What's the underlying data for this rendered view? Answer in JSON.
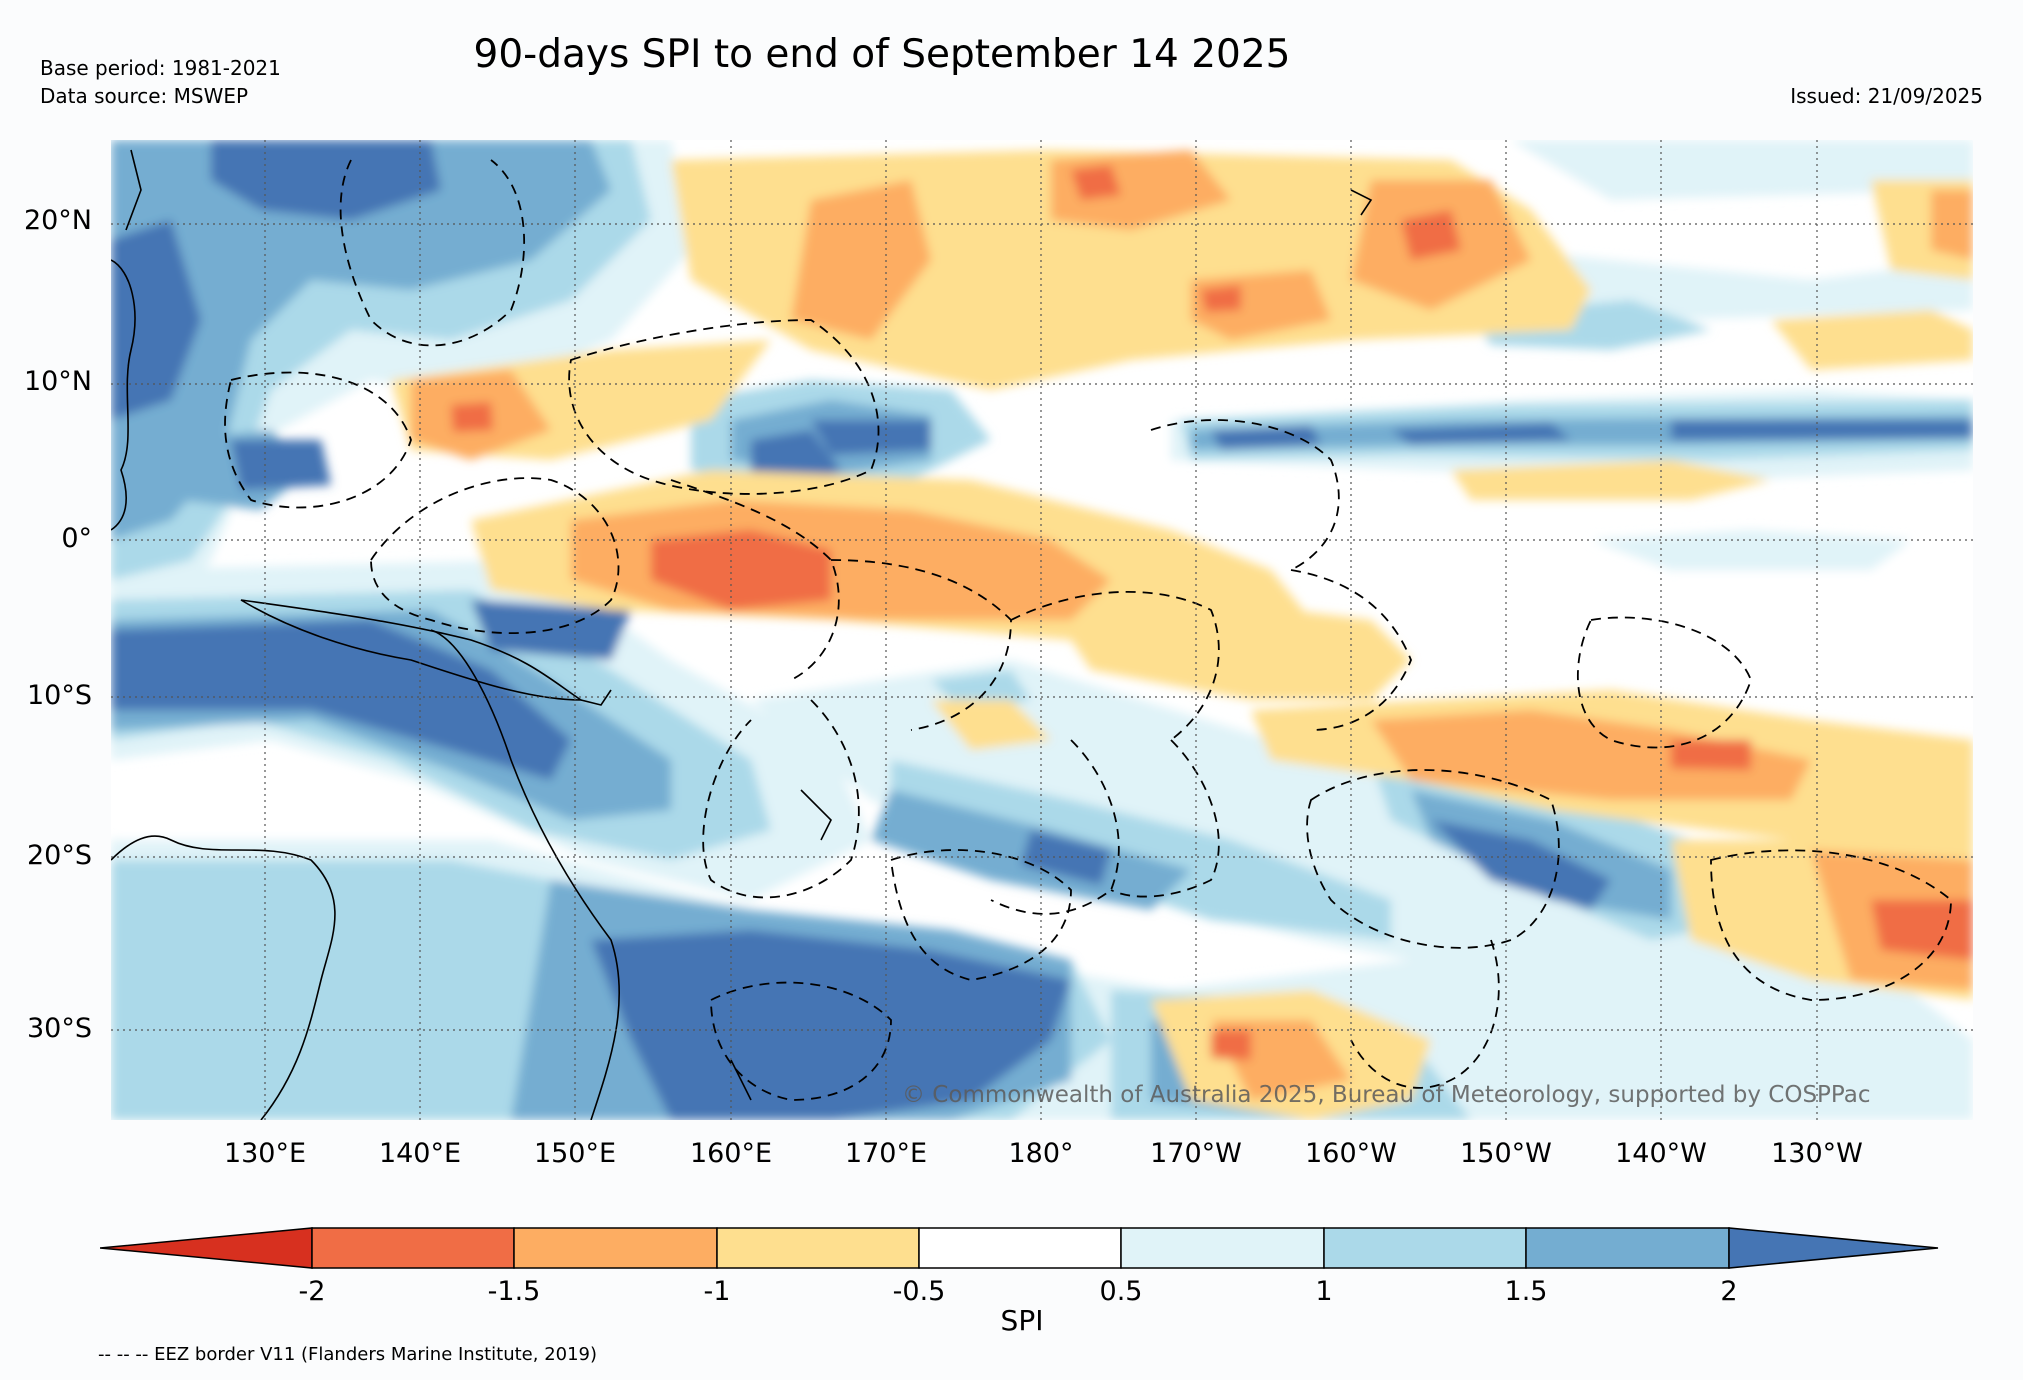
{
  "header": {
    "title": "90-days SPI to end of September 14 2025",
    "base_period": "Base period: 1981-2021",
    "data_source": "Data source: MSWEP",
    "issued": "Issued: 21/09/2025"
  },
  "map": {
    "lat_labels": [
      "20°N",
      "10°N",
      "0°",
      "10°S",
      "20°S",
      "30°S"
    ],
    "lon_labels": [
      "130°E",
      "140°E",
      "150°E",
      "160°E",
      "170°E",
      "180°",
      "170°W",
      "160°W",
      "150°W",
      "140°W",
      "130°W"
    ],
    "copyright": "© Commonwealth of Australia 2025, Bureau of Meteorology, supported by COSPPac"
  },
  "colorbar": {
    "label": "SPI",
    "ticks": [
      "-2",
      "-1.5",
      "-1",
      "-0.5",
      "0.5",
      "1",
      "1.5",
      "2"
    ],
    "colors": [
      "#d7301f",
      "#f06d45",
      "#fdad62",
      "#fedf8f",
      "#ffffff",
      "#e0f3f8",
      "#abd9e9",
      "#74add1",
      "#4575b4"
    ]
  },
  "footer": {
    "eez_note": "-- -- -- EEZ border V11 (Flanders Marine Institute, 2019)"
  }
}
